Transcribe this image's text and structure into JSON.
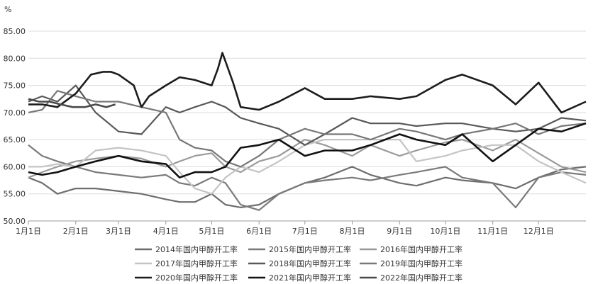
{
  "chart_data": {
    "type": "line",
    "ylabel": "%",
    "ylim": [
      50,
      85
    ],
    "y_ticks": [
      "50.00",
      "55.00",
      "60.00",
      "65.00",
      "70.00",
      "75.00",
      "80.00",
      "85.00"
    ],
    "x_ticks": [
      "1月1日",
      "2月1日",
      "3月1日",
      "4月1日",
      "5月1日",
      "6月1日",
      "7月1日",
      "8月1日",
      "9月1日",
      "10月1日",
      "11月1日",
      "12月1日"
    ],
    "x_tick_days": [
      1,
      32,
      60,
      91,
      121,
      152,
      182,
      213,
      244,
      274,
      305,
      335
    ],
    "x_range": [
      1,
      366
    ],
    "grid": "horizontal",
    "legend_position": "bottom",
    "series": [
      {
        "name": "2014年国内甲醇开工率",
        "color": "#6e6e6e",
        "width": 2.2,
        "x": [
          1,
          10,
          20,
          32,
          45,
          60,
          75,
          91,
          100,
          110,
          121,
          130,
          140,
          152,
          165,
          182,
          195,
          213,
          225,
          244,
          255,
          274,
          285,
          305,
          320,
          335,
          350,
          366
        ],
        "y": [
          58,
          57,
          55,
          56,
          56,
          55.5,
          55,
          54,
          53.5,
          53.5,
          55,
          53,
          52.5,
          53,
          55,
          57,
          58,
          60,
          58.5,
          57,
          56.5,
          58,
          57.5,
          57,
          56,
          58,
          59.5,
          60
        ]
      },
      {
        "name": "2015年国内甲醇开工率",
        "color": "#7a7a7a",
        "width": 2.2,
        "x": [
          1,
          10,
          20,
          32,
          45,
          60,
          75,
          91,
          100,
          110,
          121,
          130,
          140,
          152,
          165,
          182,
          195,
          213,
          225,
          244,
          255,
          274,
          285,
          305,
          320,
          335,
          350,
          366
        ],
        "y": [
          64,
          62,
          61,
          60,
          59,
          58.5,
          58,
          58.5,
          57,
          56.5,
          58,
          57,
          53,
          52,
          55,
          57,
          57.5,
          58,
          57.5,
          58.5,
          59,
          60,
          58,
          57,
          52.5,
          58,
          59,
          58.5
        ]
      },
      {
        "name": "2016年国内甲醇开工率",
        "color": "#9a9a9a",
        "width": 2.2,
        "x": [
          1,
          10,
          20,
          32,
          45,
          60,
          75,
          91,
          100,
          110,
          121,
          130,
          140,
          152,
          165,
          182,
          195,
          213,
          225,
          244,
          255,
          274,
          285,
          305,
          320,
          335,
          350,
          366
        ],
        "y": [
          58,
          59,
          60,
          61,
          61.5,
          62,
          61.5,
          60,
          61,
          62,
          62.5,
          60,
          59,
          61,
          62,
          65,
          64,
          62,
          64,
          62,
          63,
          64.5,
          65,
          63,
          65,
          62.5,
          60,
          59
        ]
      },
      {
        "name": "2017年国内甲醇开工率",
        "color": "#c4c4c4",
        "width": 2.2,
        "x": [
          1,
          10,
          20,
          32,
          45,
          60,
          75,
          91,
          100,
          110,
          121,
          130,
          140,
          152,
          165,
          182,
          195,
          213,
          225,
          244,
          255,
          274,
          285,
          305,
          320,
          335,
          350,
          366
        ],
        "y": [
          60,
          60,
          60.5,
          60,
          63,
          63.5,
          63,
          62,
          59,
          56,
          55,
          58,
          60,
          59,
          61,
          64,
          65,
          65,
          65,
          65,
          61,
          62,
          63,
          64,
          64,
          61,
          59,
          57
        ]
      },
      {
        "name": "2018年国内甲醇开工率",
        "color": "#585858",
        "width": 2.2,
        "x": [
          1,
          10,
          20,
          32,
          45,
          60,
          75,
          91,
          100,
          110,
          121,
          130,
          140,
          152,
          165,
          182,
          195,
          213,
          225,
          244,
          255,
          274,
          285,
          305,
          320,
          335,
          350,
          366
        ],
        "y": [
          72,
          73,
          72,
          75,
          70,
          66.5,
          66,
          71,
          70,
          71,
          72,
          71,
          69,
          68,
          67,
          64,
          66,
          69,
          68,
          68,
          67.5,
          68,
          68,
          67,
          66.5,
          67,
          69,
          68.5
        ]
      },
      {
        "name": "2019年国内甲醇开工率",
        "color": "#777777",
        "width": 2.2,
        "x": [
          1,
          10,
          20,
          32,
          45,
          60,
          75,
          91,
          100,
          110,
          121,
          130,
          140,
          152,
          165,
          182,
          195,
          213,
          225,
          244,
          255,
          274,
          285,
          305,
          320,
          335,
          350,
          366
        ],
        "y": [
          70,
          70.5,
          74,
          73,
          72,
          72,
          71,
          70,
          65,
          63.5,
          63,
          61,
          60,
          62,
          65,
          67,
          66,
          66,
          65,
          67,
          66.5,
          65,
          66,
          67,
          68,
          66,
          67.5,
          68
        ]
      },
      {
        "name": "2020年国内甲醇开工率",
        "color": "#1c1c1c",
        "width": 2.6,
        "x": [
          1,
          10,
          20,
          32,
          42,
          50,
          55,
          60,
          70,
          75,
          80,
          91,
          100,
          110,
          121,
          125,
          128,
          135,
          140,
          152,
          165,
          182,
          195,
          213,
          225,
          244,
          255,
          274,
          285,
          305,
          320,
          335,
          350,
          366
        ],
        "y": [
          71.5,
          71.5,
          71,
          73.5,
          77,
          77.5,
          77.5,
          77,
          75,
          71,
          73,
          75,
          76.5,
          76,
          75,
          78,
          81,
          75.5,
          71,
          70.5,
          72,
          74.5,
          72.5,
          72.5,
          73,
          72.5,
          73,
          76,
          77,
          75,
          71.5,
          75.5,
          70,
          72
        ]
      },
      {
        "name": "2021年国内甲醇开工率",
        "color": "#111111",
        "width": 2.6,
        "x": [
          1,
          10,
          20,
          32,
          45,
          60,
          75,
          91,
          100,
          110,
          121,
          130,
          140,
          152,
          165,
          182,
          195,
          213,
          225,
          244,
          255,
          274,
          285,
          305,
          320,
          335,
          350,
          366
        ],
        "y": [
          59,
          58.5,
          59,
          60,
          61,
          62,
          61,
          60.5,
          58,
          59,
          59,
          60,
          63.5,
          64,
          65,
          62,
          63,
          63,
          64,
          66,
          65,
          64,
          66,
          61,
          64,
          67,
          66.5,
          68
        ]
      },
      {
        "name": "2022年国内甲醇开工率",
        "color": "#4a4a4a",
        "width": 2.6,
        "x": [
          1,
          8,
          15,
          22,
          30,
          38,
          45,
          52,
          58
        ],
        "y": [
          72.5,
          72,
          72,
          71.5,
          71,
          71,
          71.5,
          71,
          71.5
        ]
      }
    ]
  }
}
